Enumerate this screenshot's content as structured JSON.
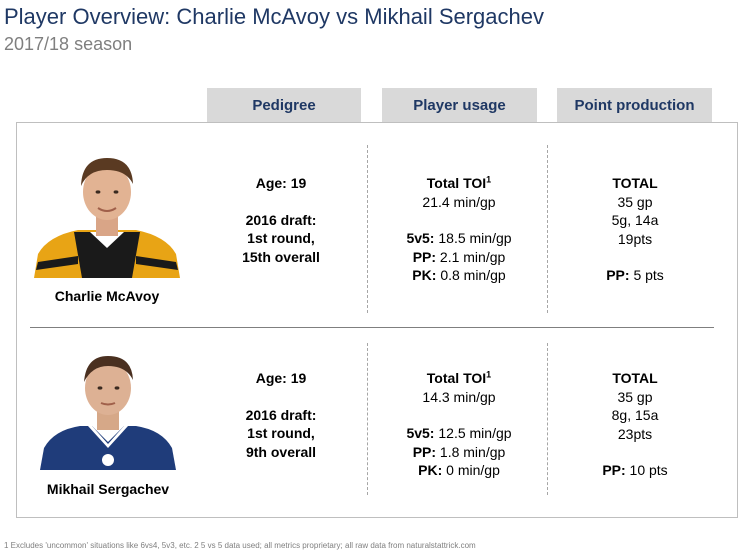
{
  "header": {
    "title": "Player Overview: Charlie McAvoy vs Mikhail Sergachev",
    "subtitle": "2017/18 season"
  },
  "columns": {
    "pedigree": "Pedigree",
    "usage": "Player usage",
    "points": "Point production"
  },
  "players": [
    {
      "name": "Charlie McAvoy",
      "avatar_icon": "player-headshot-bruins-jersey",
      "jersey_colors": {
        "primary": "#e8a415",
        "secondary": "#1a1a1a"
      },
      "age": "Age: 19",
      "draft_line1": "2016 draft:",
      "draft_line2": "1st round,",
      "draft_line3": "15th overall",
      "toi_label": "Total TOI",
      "toi_sup": "1",
      "toi_value": "21.4 min/gp",
      "ev_label": "5v5:",
      "ev_value": "18.5 min/gp",
      "pp_label": "PP:",
      "pp_value": "2.1 min/gp",
      "pk_label": "PK:",
      "pk_value": "0.8 min/gp",
      "total_label": "TOTAL",
      "gp": "35 gp",
      "goals_assists": "5g, 14a",
      "pts": "19pts",
      "pp_pts_label": "PP:",
      "pp_pts_value": "5 pts"
    },
    {
      "name": "Mikhail Sergachev",
      "avatar_icon": "player-headshot-lightning-jersey",
      "jersey_colors": {
        "primary": "#1f3c7a",
        "secondary": "#ffffff"
      },
      "age": "Age: 19",
      "draft_line1": "2016 draft:",
      "draft_line2": "1st round,",
      "draft_line3": "9th overall",
      "toi_label": "Total TOI",
      "toi_sup": "1",
      "toi_value": "14.3 min/gp",
      "ev_label": "5v5:",
      "ev_value": "12.5 min/gp",
      "pp_label": "PP:",
      "pp_value": "1.8 min/gp",
      "pk_label": "PK:",
      "pk_value": "0 min/gp",
      "total_label": "TOTAL",
      "gp": "35 gp",
      "goals_assists": "8g, 15a",
      "pts": "23pts",
      "pp_pts_label": "PP:",
      "pp_pts_value": "10 pts"
    }
  ],
  "footnote": "1 Excludes 'uncommon' situations like 6vs4, 5v3, etc. 2 5 vs 5 data used; all metrics proprietary; all raw data from naturalstattrick.com",
  "colors": {
    "title": "#1f3864",
    "header_bg": "#d9d9d9",
    "subtitle": "#7f7f7f"
  }
}
